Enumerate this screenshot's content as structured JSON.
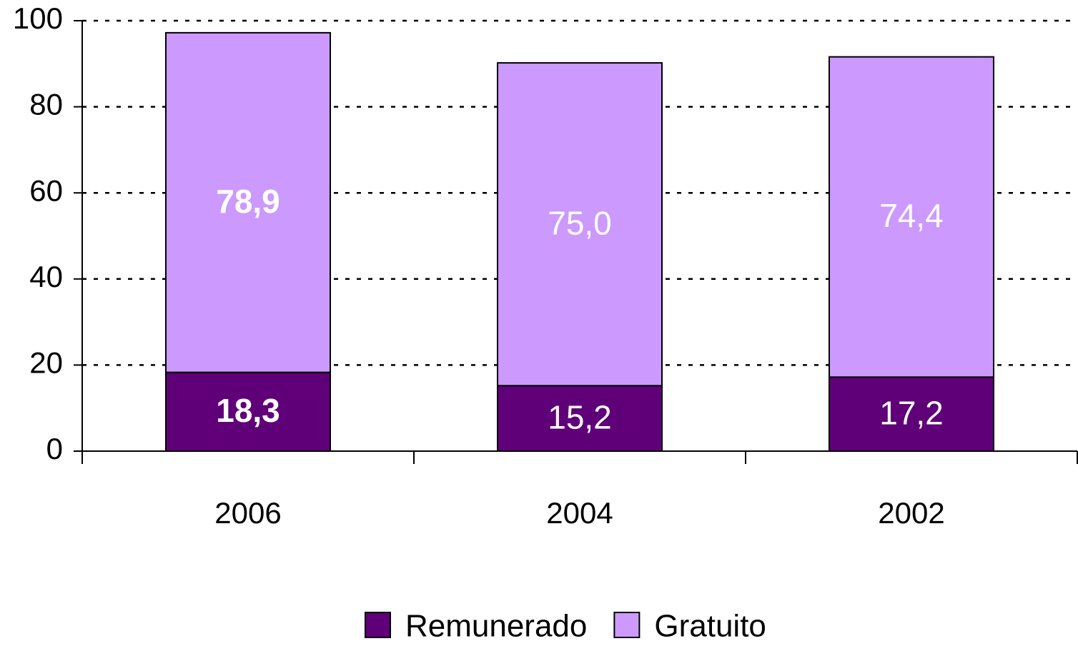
{
  "chart_data": {
    "type": "stacked_bar",
    "categories": [
      "2006",
      "2004",
      "2002"
    ],
    "series": [
      {
        "name": "Remunerado",
        "color": "#5f0078",
        "values": [
          18.3,
          15.2,
          17.2
        ],
        "value_labels": [
          "18,3",
          "15,2",
          "17,2"
        ]
      },
      {
        "name": "Gratuito",
        "color": "#cc99ff",
        "values": [
          78.9,
          75.0,
          74.4
        ],
        "value_labels": [
          "78,9",
          "75,0",
          "74,4"
        ]
      }
    ],
    "ylim": [
      0,
      100
    ],
    "yticks": [
      0,
      20,
      40,
      60,
      80,
      100
    ],
    "grid": true,
    "legend": "bottom"
  }
}
